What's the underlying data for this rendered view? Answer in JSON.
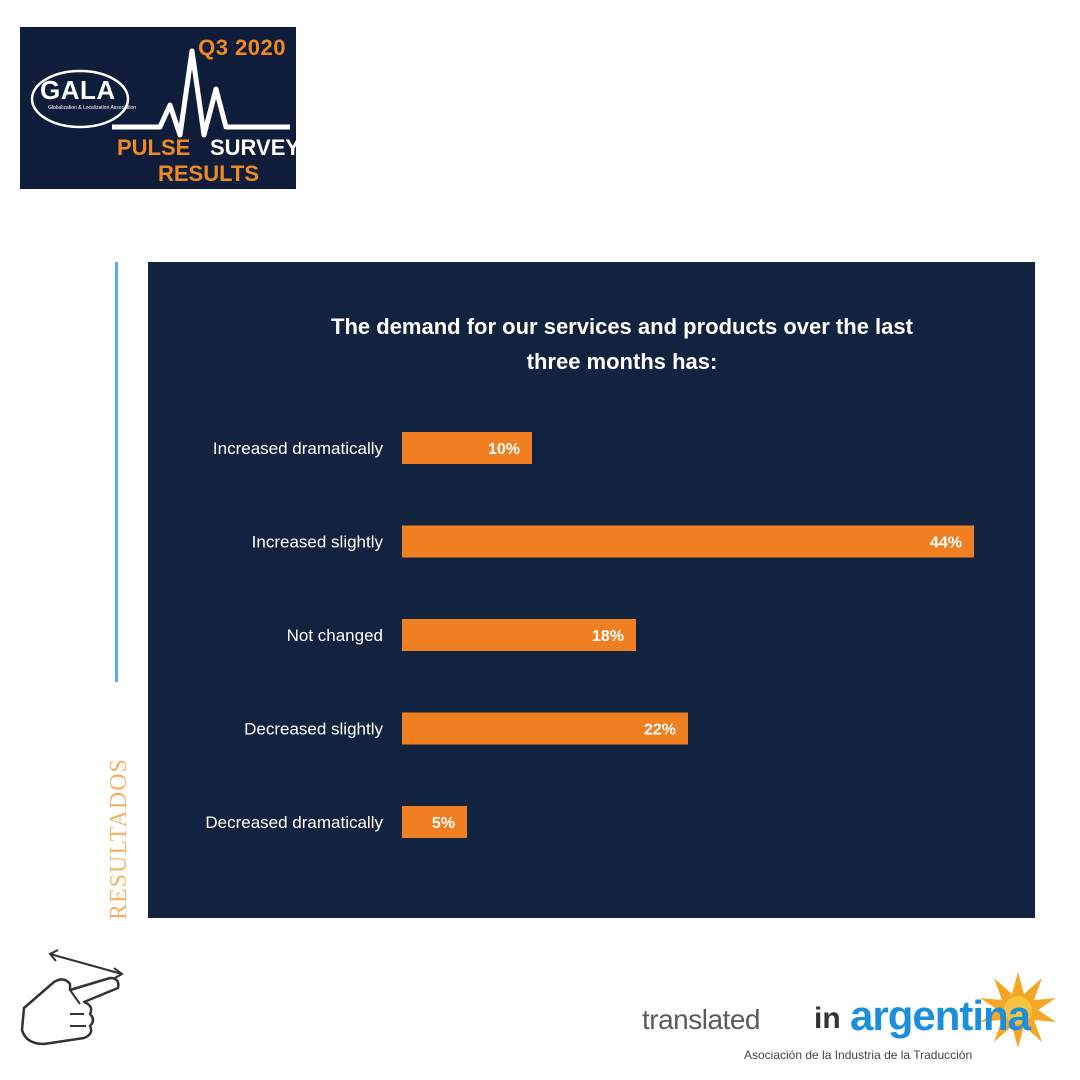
{
  "logo": {
    "quarter": "Q3 2020",
    "org": "GALA",
    "org_sub": "Globalization & Localization Association",
    "pulse": "PULSE",
    "survey": "SURVEY",
    "results": "RESULTS"
  },
  "side_label": "RESULTADOS",
  "footer_logo": {
    "translated": "translated",
    "in": "in",
    "argentina": "argentina",
    "subtitle": "Asociación de la Industria de la Traducción"
  },
  "colors": {
    "panel": "#12233f",
    "bar": "#f07f22",
    "accent": "#58aee8"
  },
  "chart_data": {
    "type": "bar",
    "orientation": "horizontal",
    "title": "The demand for our services and products over the last three months has:",
    "title_lines": [
      "The demand for our services and products over the last",
      "three months has:"
    ],
    "categories": [
      "Increased dramatically",
      "Increased slightly",
      "Not changed",
      "Decreased slightly",
      "Decreased dramatically"
    ],
    "values": [
      10,
      44,
      18,
      22,
      5
    ],
    "value_labels": [
      "10%",
      "44%",
      "18%",
      "22%",
      "5%"
    ],
    "unit": "%",
    "xlim": [
      0,
      44
    ],
    "grid": false,
    "legend": "none"
  }
}
